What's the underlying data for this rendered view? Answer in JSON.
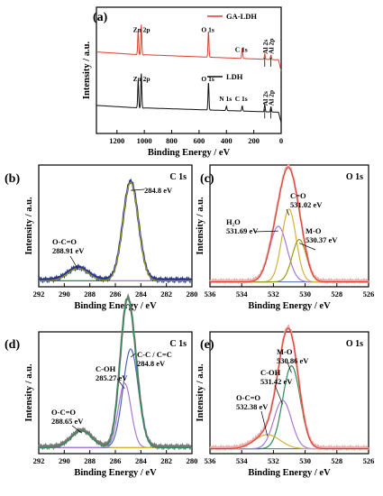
{
  "figure": {
    "background": "#ffffff",
    "colors": {
      "red": "#d9412f",
      "black": "#111111",
      "green": "#2e8b57",
      "olive": "#9a9a1a",
      "purple": "#a779d6",
      "yellow": "#d4b238",
      "blue": "#4a68b5",
      "pink": "#f2a6a6",
      "navy": "#2c3a8a",
      "gray": "#777777"
    }
  },
  "chart_data": [
    {
      "id": "a",
      "panel_label": "(a)",
      "type": "line",
      "xlabel": "Binding Energy / eV",
      "ylabel": "Intensity / a.u.",
      "xlim": [
        1350,
        0
      ],
      "xticks": [
        1200,
        1000,
        800,
        600,
        400,
        200,
        0
      ],
      "legend_position": "top-right",
      "series": [
        {
          "name": "GA-LDH",
          "color": "red",
          "offset": 0.6,
          "baseline": 0.22,
          "peaks": [
            [
              1045,
              0.28
            ],
            [
              1022,
              0.35
            ],
            [
              531,
              0.3
            ],
            [
              285,
              0.12
            ],
            [
              120,
              0.06
            ],
            [
              75,
              0.05
            ]
          ]
        },
        {
          "name": "LDH",
          "color": "black",
          "offset": 0.0,
          "baseline": 0.2,
          "peaks": [
            [
              1045,
              0.32
            ],
            [
              1022,
              0.4
            ],
            [
              531,
              0.32
            ],
            [
              400,
              0.05
            ],
            [
              285,
              0.06
            ],
            [
              120,
              0.08
            ],
            [
              75,
              0.06
            ]
          ]
        }
      ],
      "annotations": [
        {
          "text": "Zn 2p",
          "series": "GA-LDH",
          "x": 1030,
          "y": 1.05
        },
        {
          "text": "O 1s",
          "series": "GA-LDH",
          "x": 531,
          "y": 1.05
        },
        {
          "text": "C 1s",
          "series": "GA-LDH",
          "x": 285,
          "y": 0.82
        },
        {
          "text": "Al 2s",
          "series": "GA-LDH",
          "x": 120,
          "y": 0.9
        },
        {
          "text": "Al 2p",
          "series": "GA-LDH",
          "x": 75,
          "y": 0.9
        },
        {
          "text": "Zn 2p",
          "series": "LDH",
          "x": 1030,
          "y": 0.48
        },
        {
          "text": "O 1s",
          "series": "LDH",
          "x": 531,
          "y": 0.48
        },
        {
          "text": "N 1s",
          "series": "LDH",
          "x": 400,
          "y": 0.25
        },
        {
          "text": "C 1s",
          "series": "LDH",
          "x": 285,
          "y": 0.25
        },
        {
          "text": "Al 2s",
          "series": "LDH",
          "x": 120,
          "y": 0.3
        },
        {
          "text": "Al 2p",
          "series": "LDH",
          "x": 75,
          "y": 0.3
        }
      ]
    },
    {
      "id": "b",
      "panel_label": "(b)",
      "title": "C 1s",
      "type": "line",
      "xlabel": "Binding Energy / eV",
      "ylabel": "Intensity / a.u.",
      "xlim": [
        292,
        280
      ],
      "xticks": [
        292,
        290,
        288,
        286,
        284,
        282,
        280
      ],
      "ylim": [
        0,
        1.12
      ],
      "background_y": 0.04,
      "components": [
        {
          "label": "284.8 eV",
          "center": 284.8,
          "height": 0.95,
          "width": 0.6,
          "color": "green"
        },
        {
          "label": "O-C=O\n288.91 eV",
          "center": 288.91,
          "height": 0.12,
          "width": 0.8,
          "color": "purple"
        }
      ],
      "envelope_colors": [
        "navy",
        "olive"
      ]
    },
    {
      "id": "c",
      "panel_label": "(c)",
      "title": "O 1s",
      "type": "line",
      "xlabel": "Binding Energy / eV",
      "ylabel": "Intensity / a.u.",
      "xlim": [
        536,
        526
      ],
      "xticks": [
        536,
        534,
        532,
        530,
        528,
        526
      ],
      "ylim": [
        0,
        1.15
      ],
      "background_y": 0.03,
      "components": [
        {
          "label": "H2O\n531.69 eV",
          "center": 531.69,
          "height": 0.55,
          "width": 0.55,
          "color": "purple"
        },
        {
          "label": "C=O\n531.02 eV",
          "center": 531.02,
          "height": 0.72,
          "width": 0.45,
          "color": "yellow"
        },
        {
          "label": "M-O\n530.37 eV",
          "center": 530.37,
          "height": 0.42,
          "width": 0.45,
          "color": "olive"
        }
      ],
      "envelope_colors": [
        "pink",
        "red"
      ]
    },
    {
      "id": "d",
      "panel_label": "(d)",
      "title": "C 1s",
      "type": "line",
      "xlabel": "Binding Energy / eV",
      "ylabel": "Intensity / a.u.",
      "xlim": [
        292,
        280
      ],
      "xticks": [
        292,
        290,
        288,
        286,
        284,
        282,
        280
      ],
      "ylim": [
        0,
        1.12
      ],
      "background_y": 0.04,
      "components": [
        {
          "label": "C-C / C=C\n284.8 eV",
          "center": 284.8,
          "height": 0.95,
          "width": 0.6,
          "color": "blue"
        },
        {
          "label": "C-OH\n285.27 eV",
          "center": 285.27,
          "height": 0.62,
          "width": 0.5,
          "color": "purple"
        },
        {
          "label": "O-C=O\n288.65 eV",
          "center": 288.65,
          "height": 0.16,
          "width": 0.8,
          "color": "yellow"
        }
      ],
      "envelope_colors": [
        "gray",
        "green"
      ]
    },
    {
      "id": "e",
      "panel_label": "(e)",
      "title": "O 1s",
      "type": "line",
      "xlabel": "Binding Energy / eV",
      "ylabel": "Intensity / a.u.",
      "xlim": [
        536,
        526
      ],
      "xticks": [
        536,
        534,
        532,
        530,
        528,
        526
      ],
      "ylim": [
        0,
        1.15
      ],
      "background_y": 0.03,
      "components": [
        {
          "label": "M-O\n530.86 eV",
          "center": 530.86,
          "height": 0.82,
          "width": 0.55,
          "color": "green"
        },
        {
          "label": "C-OH\n531.42 eV",
          "center": 531.42,
          "height": 0.48,
          "width": 0.55,
          "color": "purple"
        },
        {
          "label": "O-C=O\n532.38 eV",
          "center": 532.38,
          "height": 0.14,
          "width": 0.8,
          "color": "yellow"
        }
      ],
      "envelope_colors": [
        "pink",
        "red"
      ]
    }
  ]
}
